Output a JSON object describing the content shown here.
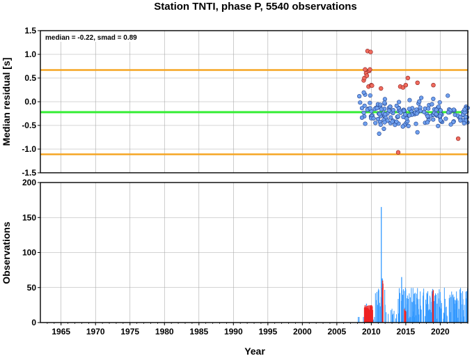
{
  "chart_data": [
    {
      "type": "scatter",
      "title": "Station TNTI, phase P, 5540 observations",
      "ylabel": "Median residual [s]",
      "xlim": [
        1962,
        2024
      ],
      "ylim": [
        -1.5,
        1.5
      ],
      "grid": true,
      "x_ticks": [
        1965,
        1970,
        1975,
        1980,
        1985,
        1990,
        1995,
        2000,
        2005,
        2010,
        2015,
        2020
      ],
      "y_ticks": [
        1.5,
        1.0,
        0.5,
        0.0,
        -0.5,
        -1.0,
        -1.5
      ],
      "y_tick_labels": [
        "1.5",
        "1.0",
        "0.5",
        "0.0",
        "-0.5",
        "-1.0",
        "-1.5"
      ],
      "annotation": "median = -0.22, smad = 0.89",
      "median_line": -0.22,
      "bounds": [
        0.67,
        -1.11
      ],
      "colors": {
        "inlier": "#6fa0ee",
        "outlier": "#f06b5d",
        "median": "#33ee33",
        "bounds": "#f5a623"
      },
      "outliers": [
        [
          2008.9,
          0.45
        ],
        [
          2009.0,
          0.5
        ],
        [
          2009.1,
          0.68
        ],
        [
          2009.25,
          0.6
        ],
        [
          2009.35,
          0.55
        ],
        [
          2009.45,
          1.07
        ],
        [
          2009.6,
          0.32
        ],
        [
          2009.7,
          0.65
        ],
        [
          2009.8,
          0.68
        ],
        [
          2009.9,
          1.05
        ],
        [
          2010.0,
          0.35
        ],
        [
          2010.1,
          0.34
        ],
        [
          2011.4,
          0.28
        ],
        [
          2013.9,
          -1.07
        ],
        [
          2014.2,
          0.32
        ],
        [
          2014.6,
          0.3
        ],
        [
          2015.0,
          0.35
        ],
        [
          2015.3,
          0.5
        ],
        [
          2016.7,
          0.4
        ],
        [
          2019.0,
          0.35
        ],
        [
          2022.6,
          -0.78
        ]
      ],
      "inliers_seed": 7,
      "inliers_count": 175,
      "inliers_x_range": [
        2008.2,
        2024.0
      ],
      "inliers_y_center": -0.25,
      "inliers_y_spread": 0.2
    },
    {
      "type": "bar",
      "ylabel": "Observations",
      "xlabel": "Year",
      "xlim": [
        1962,
        2024
      ],
      "ylim": [
        0,
        200
      ],
      "grid": true,
      "x_ticks": [
        1965,
        1970,
        1975,
        1980,
        1985,
        1990,
        1995,
        2000,
        2005,
        2010,
        2015,
        2020
      ],
      "y_ticks": [
        200,
        150,
        100,
        50,
        0
      ],
      "colors": {
        "inlier": "#3399ff",
        "outlier": "#ee2222"
      },
      "bars_seed": 11,
      "bars_x_range": [
        2008.0,
        2024.0
      ],
      "spikes": [
        [
          2011.45,
          165
        ],
        [
          2011.6,
          63
        ],
        [
          2014.4,
          65
        ],
        [
          2018.9,
          48
        ],
        [
          2009.3,
          27
        ]
      ],
      "red_segments": [
        [
          2009.0,
          2010.2,
          25
        ],
        [
          2011.6,
          2011.7,
          63
        ],
        [
          2014.8,
          2015.0,
          20
        ],
        [
          2018.9,
          2019.0,
          47
        ]
      ]
    }
  ]
}
